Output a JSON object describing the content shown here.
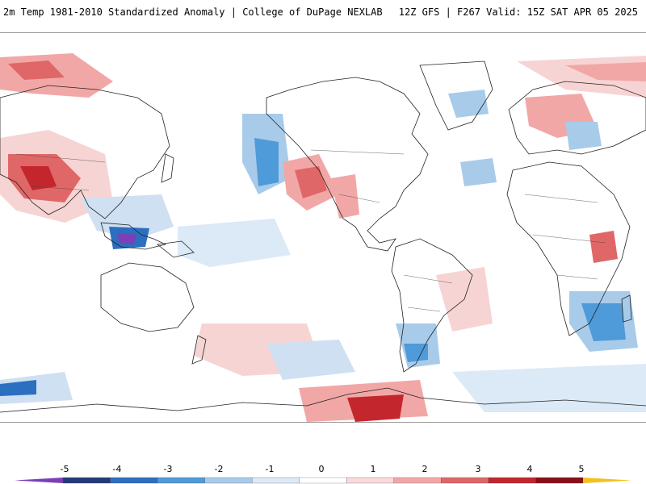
{
  "header": {
    "title_left": "2m Temp 1981-2010 Standardized Anomaly | College of DuPage NEXLAB",
    "title_right": "12Z GFS | F267 Valid: 15Z SAT APR 05 2025"
  },
  "colorbar": {
    "labels": [
      "-5",
      "-4",
      "-3",
      "-2",
      "-1",
      "0",
      "1",
      "2",
      "3",
      "4",
      "5"
    ],
    "colors": [
      "#7b3fb8",
      "#243a7a",
      "#2c6fc0",
      "#4f9ad8",
      "#a8cbea",
      "#dce9f6",
      "#ffffff",
      "#f9dada",
      "#f2a7a7",
      "#e06767",
      "#c4262d",
      "#8a0f17",
      "#f2c21a"
    ],
    "range": [
      -5,
      5
    ]
  },
  "colors": {
    "cold_strong": "#2c6fc0",
    "cold_mild": "#cfe0f2",
    "warm_mild": "#f7d4d4",
    "warm_strong": "#d9454a",
    "coast": "#222222"
  }
}
